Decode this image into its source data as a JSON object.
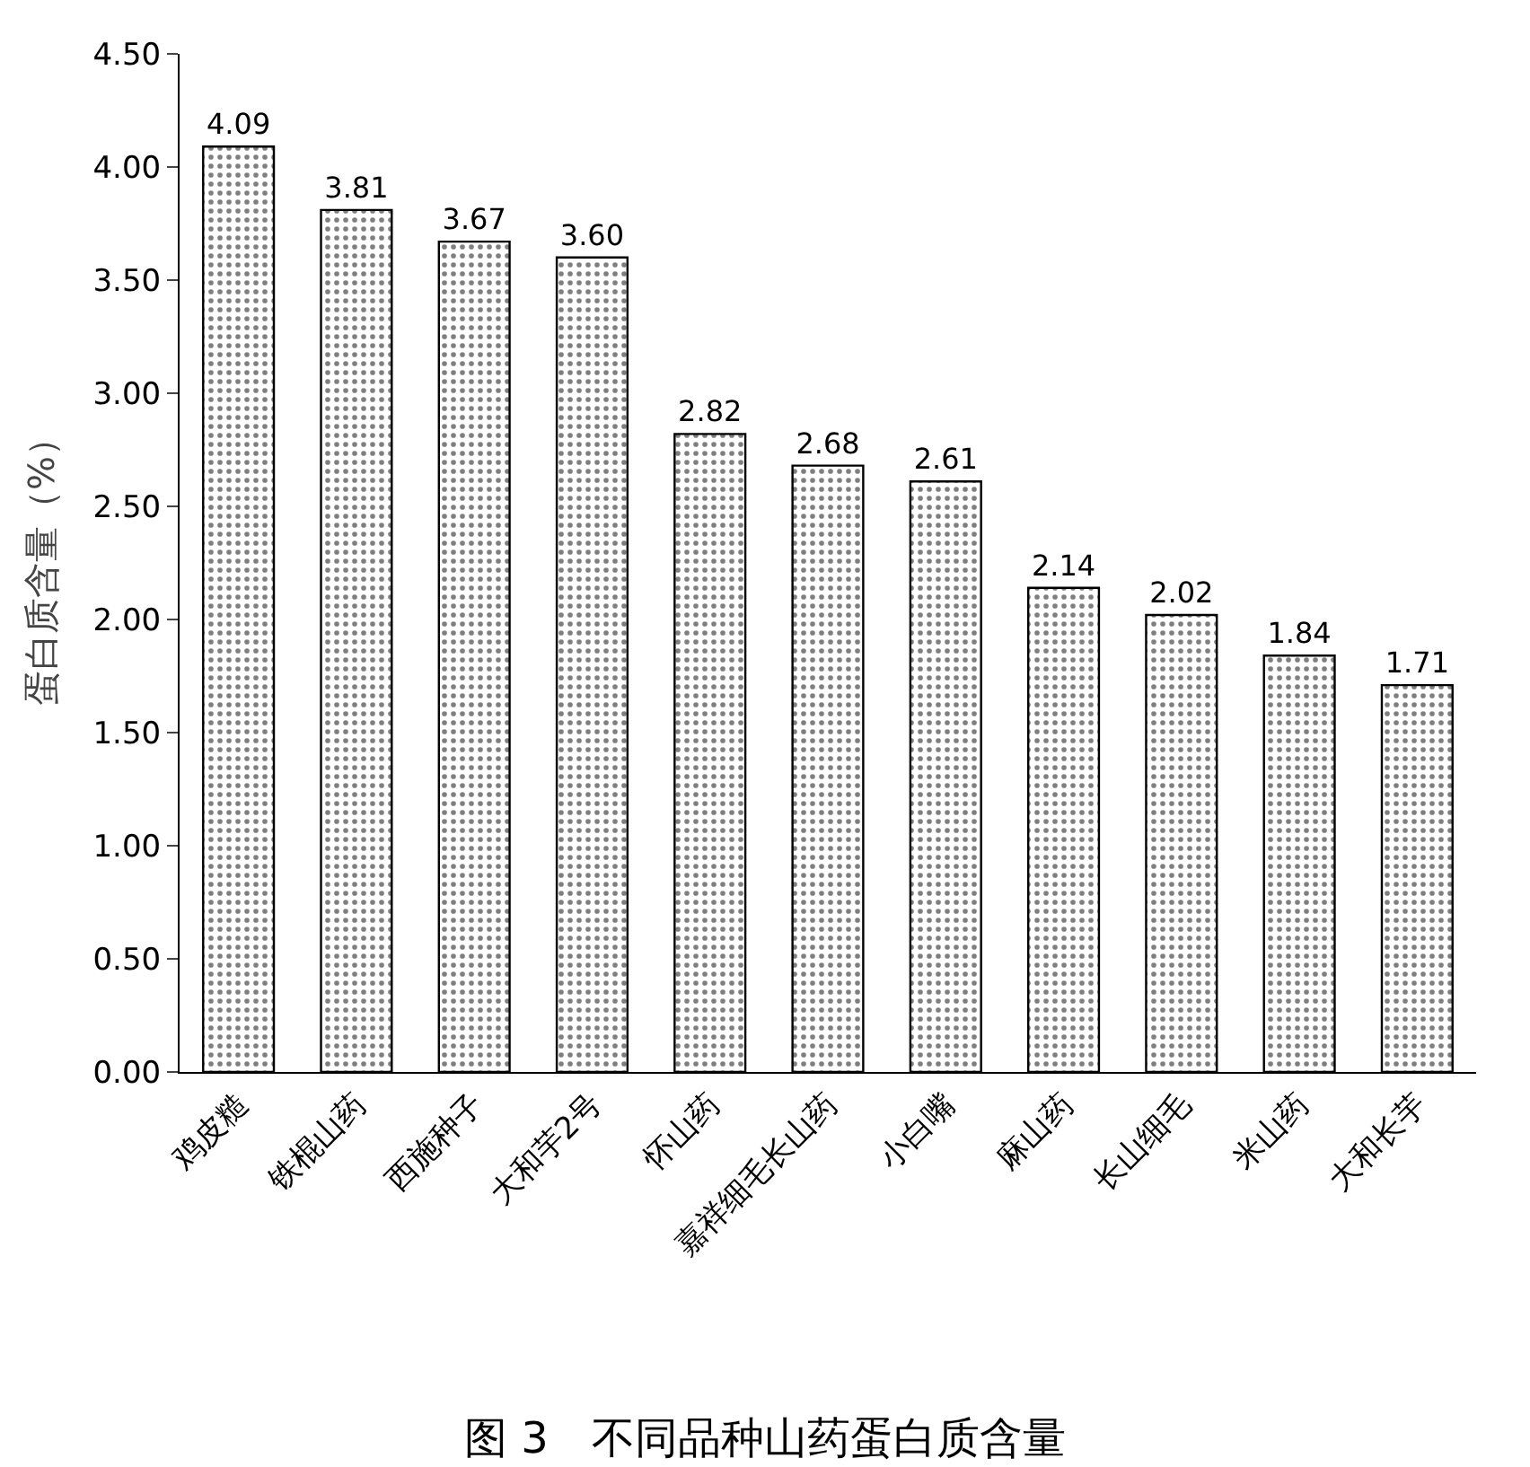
{
  "chart_data": {
    "type": "bar",
    "title": "图 3　不同品种山药蛋白质含量",
    "ylabel": "蛋白质含量（%）",
    "categories": [
      "鸡皮糙",
      "铁棍山药",
      "西施种子",
      "大和芋2号",
      "怀山药",
      "嘉祥细毛长山药",
      "小白嘴",
      "麻山药",
      "长山细毛",
      "米山药",
      "大和长芋"
    ],
    "values": [
      4.09,
      3.81,
      3.67,
      3.6,
      2.82,
      2.68,
      2.61,
      2.14,
      2.02,
      1.84,
      1.71
    ],
    "value_labels": [
      "4.09",
      "3.81",
      "3.67",
      "3.60",
      "2.82",
      "2.68",
      "2.61",
      "2.14",
      "2.02",
      "1.84",
      "1.71"
    ],
    "color": "#000000",
    "ylim": [
      0,
      4.5
    ],
    "yticks": [
      {
        "value": 0,
        "label": "0.00"
      },
      {
        "value": 0.5,
        "label": "0.50"
      },
      {
        "value": 1,
        "label": "1.00"
      },
      {
        "value": 1.5,
        "label": "1.50"
      },
      {
        "value": 2,
        "label": "2.00"
      },
      {
        "value": 2.5,
        "label": "2.50"
      },
      {
        "value": 3,
        "label": "3.00"
      },
      {
        "value": 3.5,
        "label": "3.50"
      },
      {
        "value": 4,
        "label": "4.00"
      },
      {
        "value": 4.5,
        "label": "4.50"
      }
    ],
    "tick_labels": true
  }
}
